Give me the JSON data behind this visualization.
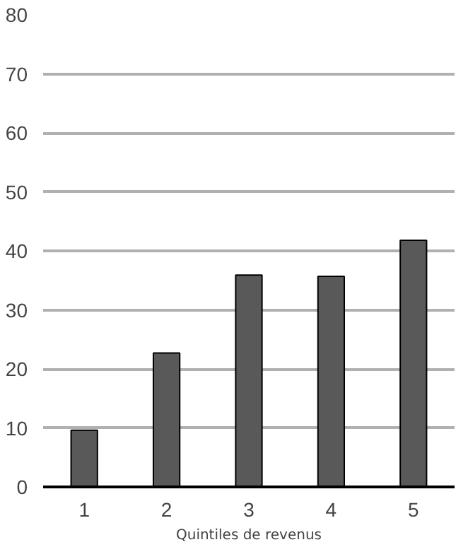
{
  "chart_data": {
    "type": "bar",
    "xlabel": "Quintiles de revenus",
    "categories": [
      "1",
      "2",
      "3",
      "4",
      "5"
    ],
    "values": [
      9.6,
      22.7,
      35.9,
      35.7,
      41.8
    ],
    "color": "#595959",
    "ylim": [
      0,
      80
    ],
    "yticks": [
      0,
      10,
      20,
      30,
      40,
      50,
      60,
      70,
      80
    ],
    "grid": "y"
  }
}
